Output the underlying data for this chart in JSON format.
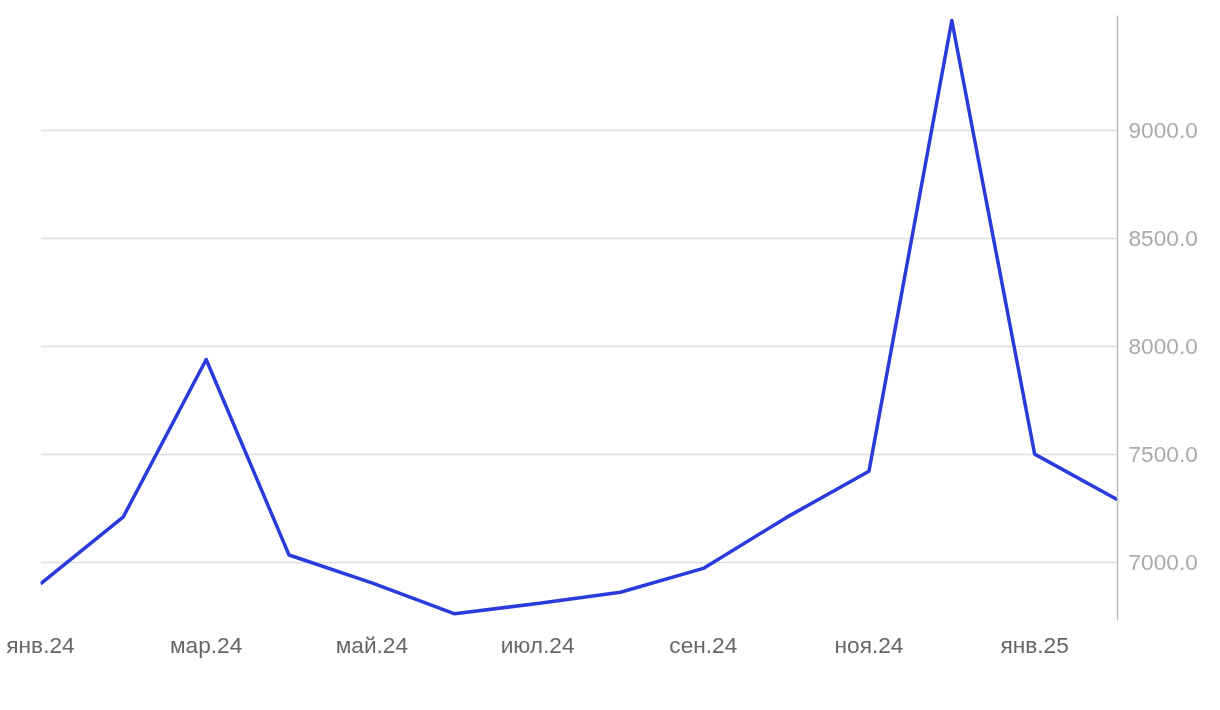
{
  "chart_data": {
    "type": "line",
    "x": [
      "2024-01",
      "2024-02",
      "2024-03",
      "2024-04",
      "2024-05",
      "2024-06",
      "2024-07",
      "2024-08",
      "2024-09",
      "2024-10",
      "2024-11",
      "2024-12",
      "2025-01",
      "2025-02"
    ],
    "series": [
      {
        "color": "#2a3bdc",
        "values": [
          6900,
          7210,
          7938,
          7033,
          6904,
          6761,
          6809,
          6861,
          6971,
          7206,
          7421,
          9507,
          7500,
          7289
        ]
      }
    ],
    "xlim": [
      "2024-01",
      "2025-02"
    ],
    "xticks": [
      {
        "value": "2024-01",
        "label": "янв.24"
      },
      {
        "value": "2024-03",
        "label": "мар.24"
      },
      {
        "value": "2024-05",
        "label": "май.24"
      },
      {
        "value": "2024-07",
        "label": "июл.24"
      },
      {
        "value": "2024-09",
        "label": "сен.24"
      },
      {
        "value": "2024-11",
        "label": "ноя.24"
      },
      {
        "value": "2025-01",
        "label": "янв.25"
      }
    ],
    "yticks": [
      {
        "value": 7000,
        "label": "7000.0"
      },
      {
        "value": 7500,
        "label": "7500.0"
      },
      {
        "value": 8000,
        "label": "8000.0"
      },
      {
        "value": 8500,
        "label": "8500.0"
      },
      {
        "value": 9000,
        "label": "9000.0"
      }
    ],
    "ylim": [
      6730,
      9530
    ],
    "grid": "y",
    "marker": "none",
    "line_style": "solid"
  }
}
